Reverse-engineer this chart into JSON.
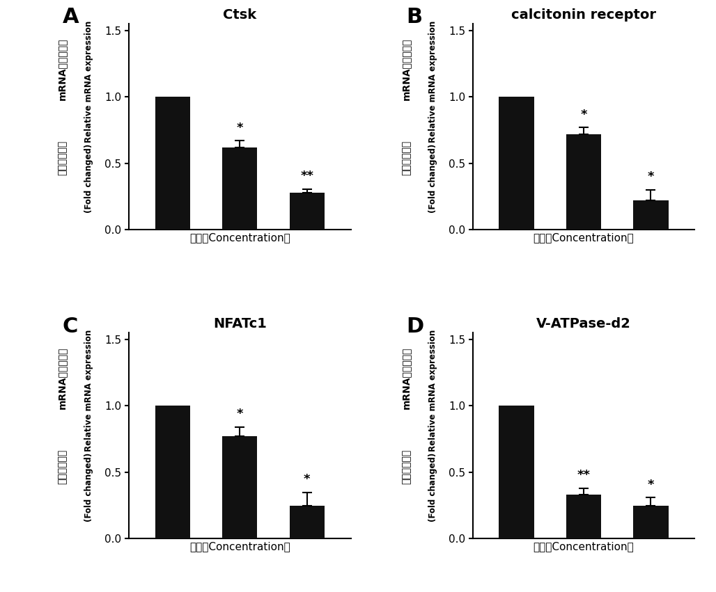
{
  "panels": [
    {
      "label": "A",
      "title": "Ctsk",
      "values": [
        1.0,
        0.62,
        0.28
      ],
      "errors": [
        0.0,
        0.05,
        0.025
      ],
      "significance": [
        "",
        "*",
        "**"
      ],
      "ylim": [
        0,
        1.55
      ],
      "yticks": [
        0.0,
        0.5,
        1.0,
        1.5
      ]
    },
    {
      "label": "B",
      "title": "calcitonin receptor",
      "values": [
        1.0,
        0.72,
        0.22
      ],
      "errors": [
        0.0,
        0.05,
        0.08
      ],
      "significance": [
        "",
        "*",
        "*"
      ],
      "ylim": [
        0,
        1.55
      ],
      "yticks": [
        0.0,
        0.5,
        1.0,
        1.5
      ]
    },
    {
      "label": "C",
      "title": "NFATc1",
      "values": [
        1.0,
        0.77,
        0.25
      ],
      "errors": [
        0.0,
        0.07,
        0.1
      ],
      "significance": [
        "",
        "*",
        "*"
      ],
      "ylim": [
        0,
        1.55
      ],
      "yticks": [
        0.0,
        0.5,
        1.0,
        1.5
      ]
    },
    {
      "label": "D",
      "title": "V-ATPase-d2",
      "values": [
        1.0,
        0.33,
        0.25
      ],
      "errors": [
        0.0,
        0.05,
        0.06
      ],
      "significance": [
        "",
        "**",
        "*"
      ],
      "ylim": [
        0,
        1.55
      ],
      "yticks": [
        0.0,
        0.5,
        1.0,
        1.5
      ]
    }
  ],
  "bar_color": "#111111",
  "bar_width": 0.52,
  "xlabel": "mRNA相对表达量",
  "xlabel2": "（差异倍数）",
  "xlabel3": "Relative mRNA expression",
  "xlabel4": "(Fold changed)",
  "xlabel_conc": "浓度（Concentration）",
  "bg_color": "#ffffff",
  "panel_label_fontsize": 22,
  "title_fontsize": 14,
  "tick_fontsize": 11,
  "xlabel_fontsize": 11,
  "sig_fontsize": 13
}
